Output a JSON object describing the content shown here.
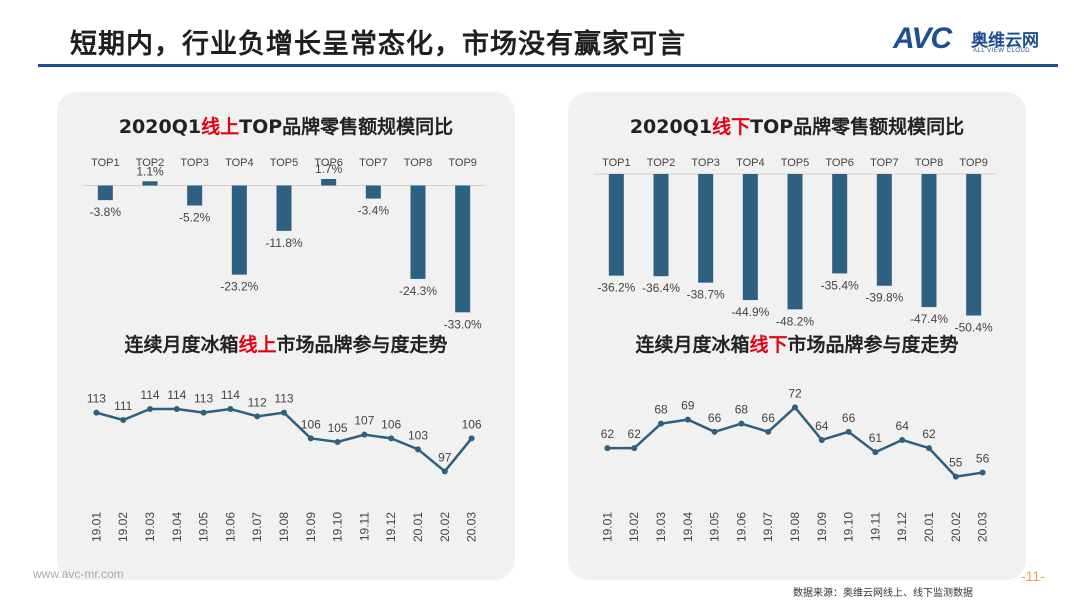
{
  "page": {
    "title": "短期内，行业负增长呈常态化，市场没有赢家可言",
    "logo_mark": "AVC",
    "logo_cn": "奥维云网",
    "logo_en": "ALL VIEW CLOUD",
    "footer_url": "www.avc-mr.com",
    "source": "数据来源：奥维云网线上、线下监测数据",
    "page_number": "-11-"
  },
  "colors": {
    "bar": "#2e6081",
    "line": "#2e6081",
    "highlight": "#e60012",
    "accent": "#1d4f91"
  },
  "chart_data": [
    {
      "type": "bar",
      "title_parts": [
        "2020Q1",
        "线上",
        "TOP品牌零售额规模同比"
      ],
      "categories": [
        "TOP1",
        "TOP2",
        "TOP3",
        "TOP4",
        "TOP5",
        "TOP6",
        "TOP7",
        "TOP8",
        "TOP9"
      ],
      "values": [
        -3.8,
        1.1,
        -5.2,
        -23.2,
        -11.8,
        1.7,
        -3.4,
        -24.3,
        -33.0
      ],
      "labels": [
        "-3.8%",
        "1.1%",
        "-5.2%",
        "-23.2%",
        "-11.8%",
        "1.7%",
        "-3.4%",
        "-24.3%",
        "-33.0%"
      ],
      "ylim": [
        -35,
        3
      ],
      "grid": false
    },
    {
      "type": "bar",
      "title_parts": [
        "2020Q1",
        "线下",
        "TOP品牌零售额规模同比"
      ],
      "categories": [
        "TOP1",
        "TOP2",
        "TOP3",
        "TOP4",
        "TOP5",
        "TOP6",
        "TOP7",
        "TOP8",
        "TOP9"
      ],
      "values": [
        -36.2,
        -36.4,
        -38.7,
        -44.9,
        -48.2,
        -35.4,
        -39.8,
        -47.4,
        -50.4
      ],
      "labels": [
        "-36.2%",
        "-36.4%",
        "-38.7%",
        "-44.9%",
        "-48.2%",
        "-35.4%",
        "-39.8%",
        "-47.4%",
        "-50.4%"
      ],
      "ylim": [
        -52,
        0
      ],
      "grid": false
    },
    {
      "type": "line",
      "title_parts": [
        "连续月度冰箱",
        "线上",
        "市场品牌参与度走势"
      ],
      "x": [
        "19.01",
        "19.02",
        "19.03",
        "19.04",
        "19.05",
        "19.06",
        "19.07",
        "19.08",
        "19.09",
        "19.10",
        "19.11",
        "19.12",
        "20.01",
        "20.02",
        "20.03"
      ],
      "values": [
        113,
        111,
        114,
        114,
        113,
        114,
        112,
        113,
        106,
        105,
        107,
        106,
        103,
        97,
        106
      ],
      "ylim": [
        90,
        120
      ],
      "grid": false
    },
    {
      "type": "line",
      "title_parts": [
        "连续月度冰箱",
        "线下",
        "市场品牌参与度走势"
      ],
      "x": [
        "19.01",
        "19.02",
        "19.03",
        "19.04",
        "19.05",
        "19.06",
        "19.07",
        "19.08",
        "19.09",
        "19.10",
        "19.11",
        "19.12",
        "20.01",
        "20.02",
        "20.03"
      ],
      "values": [
        62,
        62,
        68,
        69,
        66,
        68,
        66,
        72,
        64,
        66,
        61,
        64,
        62,
        55,
        56
      ],
      "ylim": [
        50,
        77
      ],
      "grid": false
    }
  ]
}
